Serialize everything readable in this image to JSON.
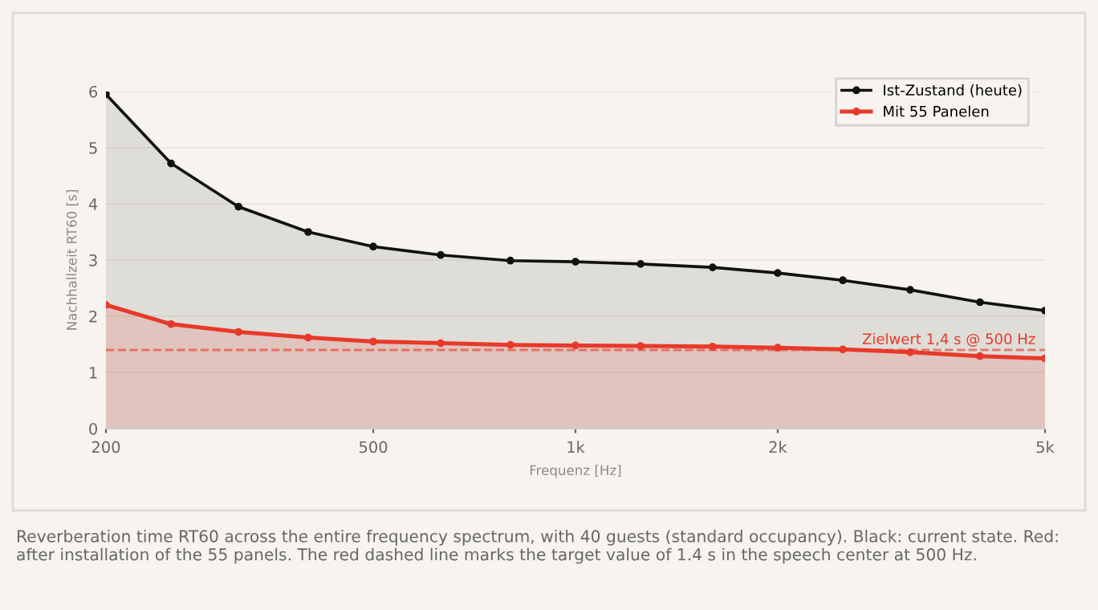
{
  "chart_data": {
    "type": "area",
    "xlabel": "Frequenz [Hz]",
    "ylabel": "Nachhallzeit RT60 [s]",
    "x": [
      200,
      250,
      315,
      400,
      500,
      630,
      800,
      1000,
      1250,
      1600,
      2000,
      2500,
      3150,
      4000,
      5000
    ],
    "series": [
      {
        "name": "Ist-Zustand (heute)",
        "color": "#111111",
        "values": [
          5.95,
          4.72,
          3.95,
          3.5,
          3.24,
          3.09,
          2.99,
          2.97,
          2.93,
          2.87,
          2.77,
          2.64,
          2.47,
          2.25,
          2.1
        ]
      },
      {
        "name": "Mit 55 Panelen",
        "color": "#e8392a",
        "values": [
          2.2,
          1.86,
          1.72,
          1.62,
          1.55,
          1.52,
          1.49,
          1.48,
          1.47,
          1.46,
          1.44,
          1.41,
          1.36,
          1.29,
          1.25
        ]
      }
    ],
    "log": "x",
    "xlim": [
      200,
      5000
    ],
    "xticks": [
      200,
      500,
      {
        "value": 1000,
        "label": "1k"
      },
      {
        "value": 2000,
        "label": "2k"
      },
      {
        "value": 5000,
        "label": "5k"
      }
    ],
    "ylim": [
      0,
      6
    ],
    "yticks": [
      0,
      1,
      2,
      3,
      4,
      5,
      6
    ],
    "grid": "y",
    "legend": "top right",
    "marker": "circle",
    "line_style": "solid",
    "ref_lines": [
      {
        "axis": "y",
        "value": 1.4,
        "label": "Zielwert 1,4 s @ 500 Hz",
        "color": "#e8392a",
        "line_style": "dashed"
      }
    ],
    "annotations": [
      "Reverberation time RT60 across the entire frequency spectrum, with 40 guests (standard occupancy). Black: current state. Red: after installation of the 55 panels. The red dashed line marks the target value of 1.4 s in the speech center at 500 Hz."
    ]
  }
}
